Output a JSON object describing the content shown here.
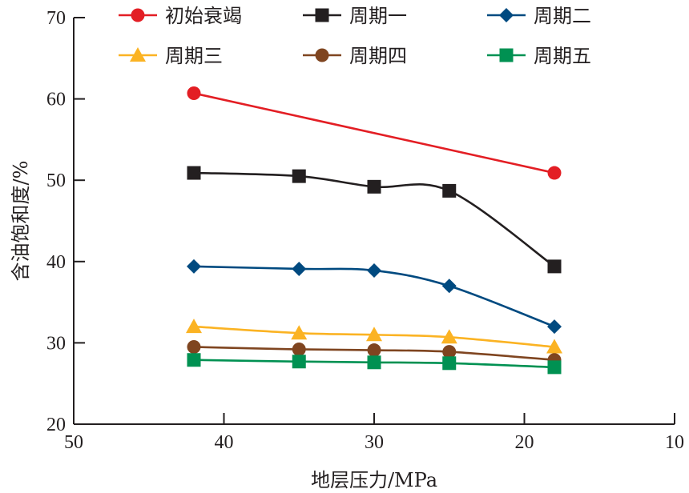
{
  "chart_data": {
    "type": "line",
    "title": "",
    "xlabel": "地层压力/MPa",
    "ylabel": "含油饱和度/%",
    "xlim": [
      50,
      10
    ],
    "ylim": [
      20,
      70
    ],
    "x_reversed": true,
    "xticks": [
      "50",
      "40",
      "30",
      "20",
      "10"
    ],
    "xtick_values": [
      50,
      40,
      30,
      20,
      10
    ],
    "yticks": [
      "20",
      "30",
      "40",
      "50",
      "60",
      "70"
    ],
    "ytick_values": [
      20,
      30,
      40,
      50,
      60,
      70
    ],
    "grid": false,
    "legend_position": "top",
    "series": [
      {
        "name": "初始衰竭",
        "color": "#e31e24",
        "marker": "circle",
        "x": [
          42,
          18
        ],
        "values": [
          60.7,
          50.9
        ]
      },
      {
        "name": "周期一",
        "color": "#231f20",
        "marker": "square",
        "x": [
          42,
          35,
          30,
          25,
          18
        ],
        "values": [
          50.9,
          50.5,
          49.2,
          48.7,
          39.4
        ]
      },
      {
        "name": "周期二",
        "color": "#004a80",
        "marker": "diamond",
        "x": [
          42,
          35,
          30,
          25,
          18
        ],
        "values": [
          39.4,
          39.1,
          38.9,
          37.0,
          32.0
        ]
      },
      {
        "name": "周期三",
        "color": "#fbb323",
        "marker": "triangle",
        "x": [
          42,
          35,
          30,
          25,
          18
        ],
        "values": [
          32.0,
          31.2,
          31.0,
          30.7,
          29.5
        ]
      },
      {
        "name": "周期四",
        "color": "#7f4520",
        "marker": "circle",
        "x": [
          42,
          35,
          30,
          25,
          18
        ],
        "values": [
          29.5,
          29.2,
          29.1,
          28.9,
          27.9
        ]
      },
      {
        "name": "周期五",
        "color": "#009152",
        "marker": "square",
        "x": [
          42,
          35,
          30,
          25,
          18
        ],
        "values": [
          27.9,
          27.7,
          27.6,
          27.5,
          27.0
        ]
      }
    ]
  }
}
